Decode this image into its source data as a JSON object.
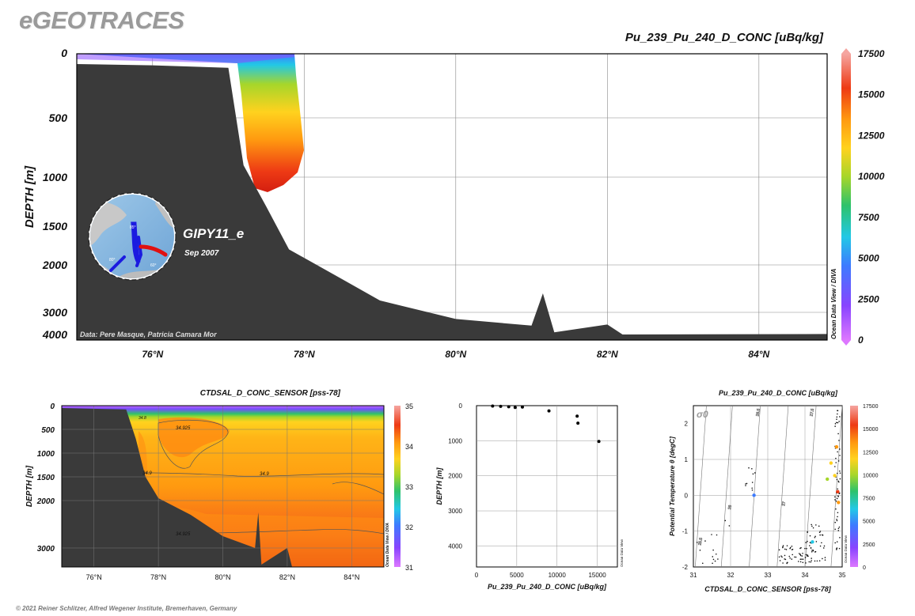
{
  "header": {
    "brand": "eGEOTRACES",
    "copyright": "© 2021 Reiner Schlitzer, Alfred Wegener Institute, Bremerhaven, Germany"
  },
  "colors": {
    "seafloor": "#3a3a3a",
    "palette": [
      "#dd77ff",
      "#8844ff",
      "#3d7bff",
      "#22c8e6",
      "#2ec26b",
      "#a6d62a",
      "#ffd21e",
      "#ff9a10",
      "#ee3a14",
      "#f5a5a0"
    ]
  },
  "main_section": {
    "title": "Pu_239_Pu_240_D_CONC [uBq/kg]",
    "ylabel": "DEPTH [m]",
    "inset": {
      "cruise": "GIPY11_e",
      "date": "Sep 2007",
      "map_labels": [
        "85°",
        "80°",
        "60°"
      ]
    },
    "credit": "Data: Pere Masque, Patricia Camara Mor",
    "odv_label": "Ocean Data View / DIVA",
    "x_ticks": [
      "76°N",
      "78°N",
      "80°N",
      "82°N",
      "84°N"
    ],
    "y_ticks": [
      "0",
      "500",
      "1000",
      "1500",
      "2000",
      "3000",
      "4000"
    ],
    "colorbar_ticks": [
      "17500",
      "15000",
      "12500",
      "10000",
      "7500",
      "5000",
      "2500",
      "0"
    ]
  },
  "salinity_section": {
    "title": "CTDSAL_D_CONC_SENSOR [pss-78]",
    "ylabel": "DEPTH [m]",
    "odv_label": "Ocean Data View / DIVA",
    "x_ticks": [
      "76°N",
      "78°N",
      "80°N",
      "82°N",
      "84°N"
    ],
    "y_ticks": [
      "0",
      "500",
      "1000",
      "1500",
      "2000",
      "3000"
    ],
    "colorbar_ticks": [
      "35",
      "34",
      "33",
      "32",
      "31"
    ],
    "contour_labels": [
      "34.925",
      "34.9",
      "34.9",
      "34.925",
      "34.9",
      "34.8"
    ]
  },
  "profile_plot": {
    "xlabel": "Pu_239_Pu_240_D_CONC [uBq/kg]",
    "ylabel": "DEPTH [m]",
    "odv_label": "Ocean Data View",
    "x_ticks": [
      "0",
      "5000",
      "10000",
      "15000"
    ],
    "y_ticks": [
      "0",
      "1000",
      "2000",
      "3000",
      "4000"
    ]
  },
  "ts_plot": {
    "title": "Pu_239_Pu_240_D_CONC [uBq/kg]",
    "xlabel": "CTDSAL_D_CONC_SENSOR [pss-78]",
    "ylabel": "Potential Temperature θ [degC]",
    "sigma_label": "σ0",
    "odv_label": "Ocean Data View",
    "x_ticks": [
      "31",
      "32",
      "33",
      "34",
      "35"
    ],
    "y_ticks": [
      "2",
      "1",
      "0",
      "-1",
      "-2"
    ],
    "isopycnals": [
      "25.5",
      "26",
      "26.5",
      "27",
      "27.5"
    ],
    "colorbar_ticks": [
      "17500",
      "15000",
      "12500",
      "10000",
      "7500",
      "5000",
      "2500",
      "0"
    ]
  },
  "chart_data": [
    {
      "type": "heatmap",
      "title": "Pu_239_Pu_240_D_CONC [uBq/kg]",
      "xlabel": "",
      "ylabel": "DEPTH [m]",
      "xlim": [
        75,
        84.9
      ],
      "ylim": [
        4150,
        0
      ],
      "color_range": [
        0,
        17500
      ],
      "samples": [
        {
          "lat": 77.4,
          "depth": 20,
          "value": 4500
        },
        {
          "lat": 77.6,
          "depth": 60,
          "value": 5200
        },
        {
          "lat": 77.5,
          "depth": 200,
          "value": 8500
        },
        {
          "lat": 77.5,
          "depth": 400,
          "value": 11500
        },
        {
          "lat": 77.5,
          "depth": 600,
          "value": 13000
        },
        {
          "lat": 77.5,
          "depth": 850,
          "value": 14600
        },
        {
          "lat": 77.4,
          "depth": 1050,
          "value": 15300
        }
      ],
      "bathymetry": [
        [
          75,
          80
        ],
        [
          76,
          90
        ],
        [
          77,
          110
        ],
        [
          77.2,
          900
        ],
        [
          77.5,
          1300
        ],
        [
          77.8,
          1800
        ],
        [
          78.5,
          2300
        ],
        [
          79,
          2750
        ],
        [
          80,
          3300
        ],
        [
          81,
          3600
        ],
        [
          81.15,
          2600
        ],
        [
          81.3,
          3900
        ],
        [
          82,
          3550
        ],
        [
          82.2,
          4000
        ],
        [
          84.9,
          3980
        ]
      ]
    },
    {
      "type": "heatmap",
      "title": "CTDSAL_D_CONC_SENSOR [pss-78]",
      "xlabel": "",
      "ylabel": "DEPTH [m]",
      "xlim": [
        75,
        85
      ],
      "ylim": [
        3400,
        0
      ],
      "color_range": [
        31,
        35
      ],
      "layers": [
        {
          "depth": 0,
          "value": 31.5
        },
        {
          "depth": 80,
          "value": 33.2
        },
        {
          "depth": 150,
          "value": 34.2
        },
        {
          "depth": 300,
          "value": 34.92
        },
        {
          "depth": 1000,
          "value": 34.91
        },
        {
          "depth": 2000,
          "value": 34.93
        },
        {
          "depth": 3000,
          "value": 34.94
        }
      ]
    },
    {
      "type": "scatter",
      "title": "",
      "xlabel": "Pu_239_Pu_240_D_CONC [uBq/kg]",
      "ylabel": "DEPTH [m]",
      "xlim": [
        0,
        17500
      ],
      "ylim": [
        4600,
        0
      ],
      "x": [
        2000,
        3000,
        4000,
        4800,
        5700,
        9000,
        12500,
        12600,
        15200
      ],
      "y": [
        10,
        20,
        30,
        50,
        40,
        150,
        300,
        500,
        1020
      ]
    },
    {
      "type": "scatter",
      "title": "Pu_239_Pu_240_D_CONC [uBq/kg]",
      "xlabel": "CTDSAL_D_CONC_SENSOR [pss-78]",
      "ylabel": "Potential Temperature θ [degC]",
      "xlim": [
        31,
        35
      ],
      "ylim": [
        -2,
        2.5
      ],
      "colored_points": [
        {
          "s": 32.63,
          "t": 0.0,
          "value": 4500
        },
        {
          "s": 34.2,
          "t": -1.3,
          "value": 5000
        },
        {
          "s": 34.6,
          "t": 0.45,
          "value": 9000
        },
        {
          "s": 34.8,
          "t": 0.55,
          "value": 12500
        },
        {
          "s": 34.85,
          "t": 1.35,
          "value": 13000
        },
        {
          "s": 34.88,
          "t": 0.1,
          "value": 15000
        },
        {
          "s": 34.9,
          "t": -0.2,
          "value": 14500
        },
        {
          "s": 34.7,
          "t": 0.9,
          "value": 12000
        }
      ]
    }
  ]
}
